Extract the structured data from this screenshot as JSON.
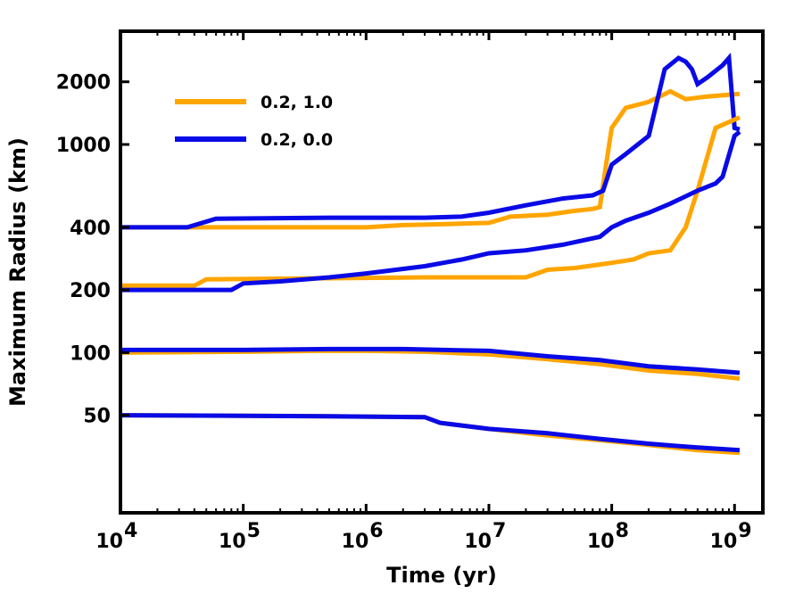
{
  "chart_data": {
    "type": "line",
    "xscale": "log",
    "yscale": "log",
    "xlabel": "Time (yr)",
    "ylabel": "Maximum Radius (km)",
    "xlim": [
      10000,
      1700000000
    ],
    "ylim": [
      17,
      3500
    ],
    "x_ticks": [
      {
        "value": 10000,
        "base": "10",
        "exp": "4"
      },
      {
        "value": 100000,
        "base": "10",
        "exp": "5"
      },
      {
        "value": 1000000,
        "base": "10",
        "exp": "6"
      },
      {
        "value": 10000000,
        "base": "10",
        "exp": "7"
      },
      {
        "value": 100000000,
        "base": "10",
        "exp": "8"
      },
      {
        "value": 1000000000,
        "base": "10",
        "exp": "9"
      }
    ],
    "y_ticks": [
      {
        "value": 50,
        "label": "50"
      },
      {
        "value": 100,
        "label": "100"
      },
      {
        "value": 200,
        "label": "200"
      },
      {
        "value": 400,
        "label": "400"
      },
      {
        "value": 1000,
        "label": "1000"
      },
      {
        "value": 2000,
        "label": "2000"
      }
    ],
    "legend": {
      "position": "top-left",
      "entries": [
        {
          "label": "0.2, 1.0",
          "color": "#FFA500"
        },
        {
          "label": "0.2, 0.0",
          "color": "#0A0AE6"
        }
      ]
    },
    "series": [
      {
        "name": "0.2, 1.0",
        "group": "r400",
        "color": "#FFA500",
        "points": [
          [
            10000,
            400
          ],
          [
            1000000,
            400
          ],
          [
            2000000,
            410
          ],
          [
            5000000,
            415
          ],
          [
            10000000,
            420
          ],
          [
            15000000,
            450
          ],
          [
            30000000,
            460
          ],
          [
            50000000,
            480
          ],
          [
            70000000,
            490
          ],
          [
            80000000,
            500
          ],
          [
            90000000,
            800
          ],
          [
            100000000,
            1200
          ],
          [
            130000000,
            1500
          ],
          [
            200000000,
            1600
          ],
          [
            300000000,
            1800
          ],
          [
            400000000,
            1650
          ],
          [
            600000000,
            1700
          ],
          [
            1100000000,
            1750
          ]
        ]
      },
      {
        "name": "0.2, 0.0",
        "group": "r400",
        "color": "#0A0AE6",
        "points": [
          [
            10000,
            400
          ],
          [
            35000,
            400
          ],
          [
            60000,
            440
          ],
          [
            500000,
            445
          ],
          [
            3000000,
            445
          ],
          [
            6000000,
            450
          ],
          [
            10000000,
            470
          ],
          [
            20000000,
            510
          ],
          [
            40000000,
            550
          ],
          [
            70000000,
            570
          ],
          [
            85000000,
            600
          ],
          [
            100000000,
            800
          ],
          [
            130000000,
            900
          ],
          [
            200000000,
            1100
          ],
          [
            270000000,
            2300
          ],
          [
            350000000,
            2600
          ],
          [
            400000000,
            2500
          ],
          [
            450000000,
            2300
          ],
          [
            500000000,
            1950
          ],
          [
            600000000,
            2100
          ],
          [
            800000000,
            2400
          ],
          [
            900000000,
            2600
          ],
          [
            1000000000,
            1200
          ],
          [
            1100000000,
            1180
          ]
        ]
      },
      {
        "name": "0.2, 1.0",
        "group": "r200",
        "color": "#FFA500",
        "points": [
          [
            10000,
            210
          ],
          [
            40000,
            210
          ],
          [
            50000,
            225
          ],
          [
            3000000,
            230
          ],
          [
            20000000,
            230
          ],
          [
            30000000,
            250
          ],
          [
            50000000,
            255
          ],
          [
            80000000,
            265
          ],
          [
            100000000,
            270
          ],
          [
            150000000,
            280
          ],
          [
            200000000,
            300
          ],
          [
            300000000,
            310
          ],
          [
            400000000,
            400
          ],
          [
            500000000,
            600
          ],
          [
            700000000,
            1200
          ],
          [
            1100000000,
            1350
          ]
        ]
      },
      {
        "name": "0.2, 0.0",
        "group": "r200",
        "color": "#0A0AE6",
        "points": [
          [
            10000,
            200
          ],
          [
            80000,
            200
          ],
          [
            100000,
            215
          ],
          [
            200000,
            220
          ],
          [
            500000,
            230
          ],
          [
            1000000,
            240
          ],
          [
            3000000,
            260
          ],
          [
            6000000,
            280
          ],
          [
            10000000,
            300
          ],
          [
            20000000,
            310
          ],
          [
            40000000,
            330
          ],
          [
            80000000,
            360
          ],
          [
            100000000,
            400
          ],
          [
            130000000,
            430
          ],
          [
            200000000,
            470
          ],
          [
            300000000,
            520
          ],
          [
            500000000,
            600
          ],
          [
            700000000,
            650
          ],
          [
            800000000,
            700
          ],
          [
            1000000000,
            1100
          ],
          [
            1100000000,
            1150
          ]
        ]
      },
      {
        "name": "0.2, 1.0",
        "group": "r100",
        "color": "#FFA500",
        "points": [
          [
            10000,
            100
          ],
          [
            100000,
            101
          ],
          [
            400000,
            102
          ],
          [
            1000000,
            102
          ],
          [
            3000000,
            101
          ],
          [
            10000000,
            98
          ],
          [
            30000000,
            93
          ],
          [
            80000000,
            88
          ],
          [
            200000000,
            82
          ],
          [
            500000000,
            79
          ],
          [
            1100000000,
            75
          ]
        ]
      },
      {
        "name": "0.2, 0.0",
        "group": "r100",
        "color": "#0A0AE6",
        "points": [
          [
            10000,
            103
          ],
          [
            100000,
            103
          ],
          [
            500000,
            104
          ],
          [
            2000000,
            104
          ],
          [
            10000000,
            102
          ],
          [
            30000000,
            96
          ],
          [
            80000000,
            92
          ],
          [
            200000000,
            86
          ],
          [
            500000000,
            83
          ],
          [
            1100000000,
            80
          ]
        ]
      },
      {
        "name": "0.2, 1.0",
        "group": "r50",
        "color": "#FFA500",
        "points": [
          [
            10000,
            50
          ],
          [
            500000,
            49.5
          ],
          [
            3000000,
            49
          ],
          [
            4000000,
            46
          ],
          [
            10000000,
            43
          ],
          [
            30000000,
            40
          ],
          [
            80000000,
            38
          ],
          [
            200000000,
            36
          ],
          [
            500000000,
            34
          ],
          [
            1100000000,
            33
          ]
        ]
      },
      {
        "name": "0.2, 0.0",
        "group": "r50",
        "color": "#0A0AE6",
        "points": [
          [
            10000,
            50
          ],
          [
            500000,
            49.5
          ],
          [
            3000000,
            49
          ],
          [
            4000000,
            46
          ],
          [
            10000000,
            43
          ],
          [
            30000000,
            41
          ],
          [
            80000000,
            38.5
          ],
          [
            200000000,
            36.5
          ],
          [
            500000000,
            35
          ],
          [
            1100000000,
            34
          ]
        ]
      }
    ]
  }
}
